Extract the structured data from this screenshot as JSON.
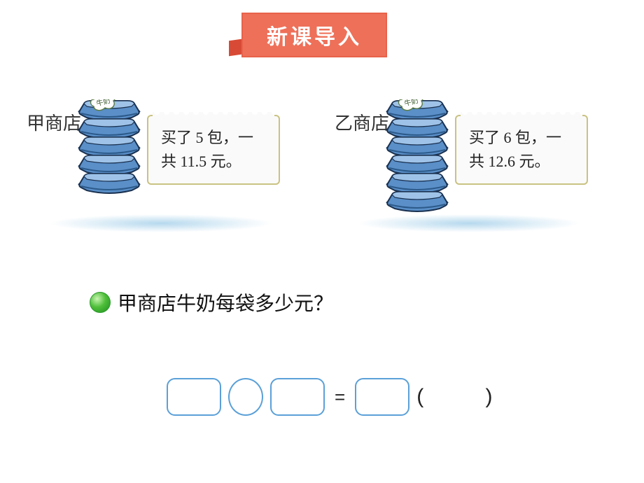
{
  "banner": {
    "text": "新课导入",
    "bg": "#ee7059",
    "tail": "#d84a35",
    "textColor": "#ffffff"
  },
  "stores": {
    "a": {
      "label": "甲商店",
      "bags": 5,
      "badge": "牛奶",
      "speechLines": [
        "买了 5 包，一",
        "共 11.5 元。"
      ]
    },
    "b": {
      "label": "乙商店",
      "bags": 6,
      "badge": "牛奶",
      "speechLines": [
        "买了 6 包，一",
        "共 12.6 元。"
      ]
    }
  },
  "question": "甲商店牛奶每袋多少元？",
  "equation": {
    "slots": [
      "rect",
      "oval",
      "rect",
      "equals",
      "rect"
    ],
    "unitParen": "(        )",
    "boxBorder": "#5aa0d8",
    "equals": "="
  },
  "colors": {
    "bagFill": "#5a8fc8",
    "bagDark": "#2c5a8a",
    "bagLight": "#9fc3e8",
    "bagOutline": "#1a3150",
    "badgeFill": "#ffffff",
    "badgeOutline": "#5a7a40",
    "speechBorder": "#c9c282",
    "speechBg": "#fafafa",
    "text": "#222222"
  }
}
